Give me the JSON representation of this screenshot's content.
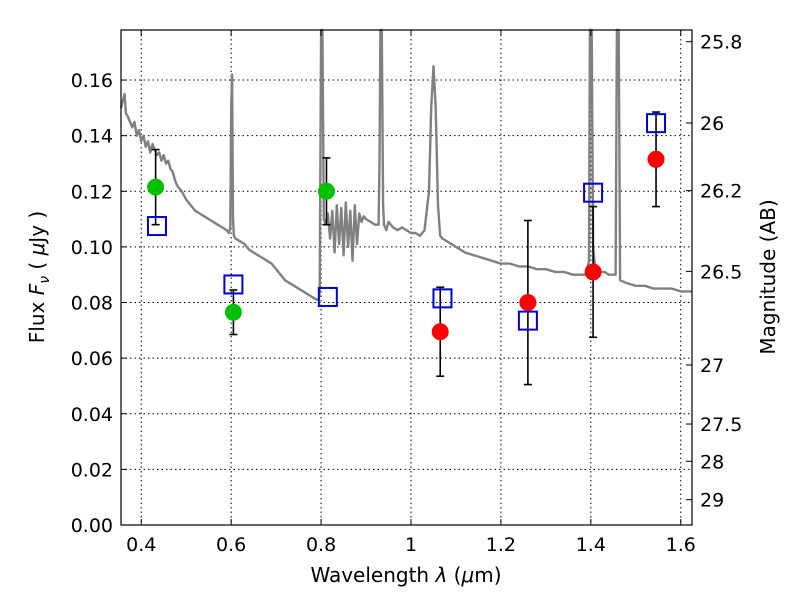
{
  "chart_data": {
    "type": "scatter",
    "xlabel_prefix": "Wavelength  ",
    "xlabel_symbol": "λ",
    "xlabel_unit_open": " (",
    "xlabel_unit_symbol": "μ",
    "xlabel_unit_rest": "m)",
    "ylabel_prefix": "Flux  ",
    "ylabel_symbol": "F",
    "ylabel_subscript": "ν",
    "ylabel_unit_open": "  ( ",
    "ylabel_unit_symbol": "μ",
    "ylabel_unit_rest": "Jy )",
    "y2label": "Magnitude (AB)",
    "xlim": [
      0.355,
      1.625
    ],
    "ylim": [
      0.0,
      0.178
    ],
    "grid": true,
    "x_ticks": [
      {
        "value": 0.4,
        "label": "0.4"
      },
      {
        "value": 0.6,
        "label": "0.6"
      },
      {
        "value": 0.8,
        "label": "0.8"
      },
      {
        "value": 1.0,
        "label": "1"
      },
      {
        "value": 1.2,
        "label": "1.2"
      },
      {
        "value": 1.4,
        "label": "1.4"
      },
      {
        "value": 1.6,
        "label": "1.6"
      }
    ],
    "y_ticks": [
      {
        "value": 0.0,
        "label": "0.00"
      },
      {
        "value": 0.02,
        "label": "0.02"
      },
      {
        "value": 0.04,
        "label": "0.04"
      },
      {
        "value": 0.06,
        "label": "0.06"
      },
      {
        "value": 0.08,
        "label": "0.08"
      },
      {
        "value": 0.1,
        "label": "0.10"
      },
      {
        "value": 0.12,
        "label": "0.12"
      },
      {
        "value": 0.14,
        "label": "0.14"
      },
      {
        "value": 0.16,
        "label": "0.16"
      }
    ],
    "magnitude_ticks": [
      {
        "value": 25.8,
        "label": "25.8"
      },
      {
        "value": 26.0,
        "label": "26"
      },
      {
        "value": 26.2,
        "label": "26.2"
      },
      {
        "value": 26.5,
        "label": "26.5"
      },
      {
        "value": 27.0,
        "label": "27"
      },
      {
        "value": 27.5,
        "label": "27.5"
      },
      {
        "value": 28.0,
        "label": "28"
      },
      {
        "value": 29.0,
        "label": "29"
      }
    ],
    "series": [
      {
        "kind": "model_spectrum",
        "color": "#808080",
        "points": [
          [
            0.355,
            0.15
          ],
          [
            0.36,
            0.153
          ],
          [
            0.363,
            0.155
          ],
          [
            0.366,
            0.148
          ],
          [
            0.37,
            0.147
          ],
          [
            0.375,
            0.145
          ],
          [
            0.38,
            0.143
          ],
          [
            0.385,
            0.145
          ],
          [
            0.39,
            0.14
          ],
          [
            0.395,
            0.142
          ],
          [
            0.4,
            0.138
          ],
          [
            0.405,
            0.14
          ],
          [
            0.41,
            0.136
          ],
          [
            0.415,
            0.138
          ],
          [
            0.42,
            0.134
          ],
          [
            0.425,
            0.137
          ],
          [
            0.43,
            0.135
          ],
          [
            0.435,
            0.133
          ],
          [
            0.44,
            0.134
          ],
          [
            0.445,
            0.131
          ],
          [
            0.45,
            0.133
          ],
          [
            0.455,
            0.13
          ],
          [
            0.46,
            0.131
          ],
          [
            0.465,
            0.128
          ],
          [
            0.47,
            0.127
          ],
          [
            0.475,
            0.124
          ],
          [
            0.48,
            0.122
          ],
          [
            0.49,
            0.12
          ],
          [
            0.5,
            0.117
          ],
          [
            0.51,
            0.115
          ],
          [
            0.52,
            0.113
          ],
          [
            0.53,
            0.112
          ],
          [
            0.54,
            0.111
          ],
          [
            0.55,
            0.11
          ],
          [
            0.56,
            0.109
          ],
          [
            0.57,
            0.108
          ],
          [
            0.58,
            0.107
          ],
          [
            0.59,
            0.106
          ],
          [
            0.595,
            0.105
          ],
          [
            0.598,
            0.107
          ],
          [
            0.6,
            0.15
          ],
          [
            0.602,
            0.162
          ],
          [
            0.604,
            0.11
          ],
          [
            0.606,
            0.104
          ],
          [
            0.61,
            0.103
          ],
          [
            0.62,
            0.102
          ],
          [
            0.63,
            0.101
          ],
          [
            0.64,
            0.099
          ],
          [
            0.65,
            0.098
          ],
          [
            0.66,
            0.097
          ],
          [
            0.67,
            0.096
          ],
          [
            0.68,
            0.095
          ],
          [
            0.69,
            0.094
          ],
          [
            0.7,
            0.092
          ],
          [
            0.71,
            0.09
          ],
          [
            0.72,
            0.088
          ],
          [
            0.73,
            0.087
          ],
          [
            0.74,
            0.086
          ],
          [
            0.75,
            0.085
          ],
          [
            0.76,
            0.084
          ],
          [
            0.77,
            0.083
          ],
          [
            0.78,
            0.082
          ],
          [
            0.79,
            0.081
          ],
          [
            0.795,
            0.081
          ],
          [
            0.797,
            0.084
          ],
          [
            0.8,
            0.178
          ],
          [
            0.803,
            0.178
          ],
          [
            0.806,
            0.11
          ],
          [
            0.81,
            0.108
          ],
          [
            0.815,
            0.112
          ],
          [
            0.82,
            0.103
          ],
          [
            0.825,
            0.113
          ],
          [
            0.83,
            0.098
          ],
          [
            0.835,
            0.115
          ],
          [
            0.84,
            0.101
          ],
          [
            0.845,
            0.114
          ],
          [
            0.85,
            0.097
          ],
          [
            0.855,
            0.116
          ],
          [
            0.86,
            0.1
          ],
          [
            0.865,
            0.113
          ],
          [
            0.87,
            0.095
          ],
          [
            0.875,
            0.115
          ],
          [
            0.88,
            0.101
          ],
          [
            0.885,
            0.112
          ],
          [
            0.89,
            0.109
          ],
          [
            0.895,
            0.111
          ],
          [
            0.9,
            0.11
          ],
          [
            0.91,
            0.109
          ],
          [
            0.92,
            0.108
          ],
          [
            0.928,
            0.108
          ],
          [
            0.93,
            0.13
          ],
          [
            0.932,
            0.178
          ],
          [
            0.935,
            0.178
          ],
          [
            0.938,
            0.115
          ],
          [
            0.94,
            0.108
          ],
          [
            0.945,
            0.106
          ],
          [
            0.95,
            0.109
          ],
          [
            0.96,
            0.107
          ],
          [
            0.97,
            0.106
          ],
          [
            0.98,
            0.107
          ],
          [
            0.99,
            0.106
          ],
          [
            1.0,
            0.105
          ],
          [
            1.01,
            0.105
          ],
          [
            1.02,
            0.104
          ],
          [
            1.03,
            0.106
          ],
          [
            1.04,
            0.12
          ],
          [
            1.045,
            0.15
          ],
          [
            1.05,
            0.165
          ],
          [
            1.055,
            0.15
          ],
          [
            1.06,
            0.115
          ],
          [
            1.065,
            0.104
          ],
          [
            1.07,
            0.103
          ],
          [
            1.08,
            0.102
          ],
          [
            1.1,
            0.1
          ],
          [
            1.12,
            0.098
          ],
          [
            1.14,
            0.097
          ],
          [
            1.16,
            0.096
          ],
          [
            1.18,
            0.095
          ],
          [
            1.2,
            0.094
          ],
          [
            1.22,
            0.094
          ],
          [
            1.24,
            0.093
          ],
          [
            1.26,
            0.093
          ],
          [
            1.28,
            0.092
          ],
          [
            1.3,
            0.092
          ],
          [
            1.32,
            0.091
          ],
          [
            1.34,
            0.091
          ],
          [
            1.36,
            0.09
          ],
          [
            1.38,
            0.09
          ],
          [
            1.39,
            0.09
          ],
          [
            1.396,
            0.095
          ],
          [
            1.398,
            0.178
          ],
          [
            1.402,
            0.178
          ],
          [
            1.405,
            0.1
          ],
          [
            1.41,
            0.092
          ],
          [
            1.42,
            0.091
          ],
          [
            1.43,
            0.091
          ],
          [
            1.44,
            0.09
          ],
          [
            1.45,
            0.09
          ],
          [
            1.455,
            0.09
          ],
          [
            1.458,
            0.178
          ],
          [
            1.462,
            0.178
          ],
          [
            1.465,
            0.088
          ],
          [
            1.48,
            0.087
          ],
          [
            1.5,
            0.086
          ],
          [
            1.52,
            0.086
          ],
          [
            1.54,
            0.085
          ],
          [
            1.56,
            0.085
          ],
          [
            1.58,
            0.085
          ],
          [
            1.6,
            0.084
          ],
          [
            1.625,
            0.084
          ]
        ]
      },
      {
        "kind": "model_photometry",
        "marker": "open_square",
        "color": "#0000cc",
        "points": [
          {
            "x": 0.435,
            "y": 0.1075
          },
          {
            "x": 0.605,
            "y": 0.0865
          },
          {
            "x": 0.815,
            "y": 0.082
          },
          {
            "x": 1.07,
            "y": 0.0815
          },
          {
            "x": 1.26,
            "y": 0.0735
          },
          {
            "x": 1.405,
            "y": 0.1195
          },
          {
            "x": 1.545,
            "y": 0.1445
          }
        ]
      },
      {
        "kind": "observed_optical",
        "marker": "filled_circle",
        "color": "#00c000",
        "points": [
          {
            "x": 0.432,
            "y": 0.1215,
            "err": 0.0135
          },
          {
            "x": 0.605,
            "y": 0.0765,
            "err": 0.008
          },
          {
            "x": 0.812,
            "y": 0.12,
            "err": 0.012
          }
        ]
      },
      {
        "kind": "observed_infrared",
        "marker": "filled_circle",
        "color": "#ff0000",
        "points": [
          {
            "x": 1.065,
            "y": 0.0695,
            "err": 0.016
          },
          {
            "x": 1.26,
            "y": 0.08,
            "err": 0.0295
          },
          {
            "x": 1.405,
            "y": 0.091,
            "err": 0.0235
          },
          {
            "x": 1.545,
            "y": 0.1315,
            "err": 0.017
          }
        ]
      }
    ]
  }
}
